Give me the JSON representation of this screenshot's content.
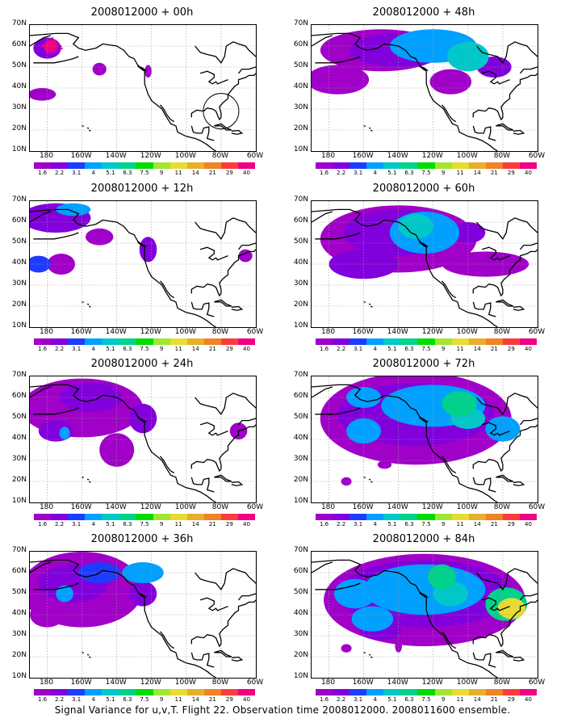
{
  "panels": [
    {
      "title": "2008012000 + 00h",
      "lead": "00h"
    },
    {
      "title": "2008012000 + 48h",
      "lead": "48h"
    },
    {
      "title": "2008012000 + 12h",
      "lead": "12h"
    },
    {
      "title": "2008012000 + 60h",
      "lead": "60h"
    },
    {
      "title": "2008012000 + 24h",
      "lead": "24h"
    },
    {
      "title": "2008012000 + 72h",
      "lead": "72h"
    },
    {
      "title": "2008012000 + 36h",
      "lead": "36h"
    },
    {
      "title": "2008012000 + 84h",
      "lead": "84h"
    }
  ],
  "axes": {
    "lat_labels": [
      "70N",
      "60N",
      "50N",
      "40N",
      "30N",
      "20N",
      "10N"
    ],
    "lon_labels": [
      "180",
      "160W",
      "140W",
      "120W",
      "100W",
      "80W",
      "60W"
    ]
  },
  "colorbar": {
    "labels": [
      "1.6",
      "2.2",
      "3.1",
      "4",
      "5.1",
      "6.3",
      "7.5",
      "9",
      "11",
      "14",
      "21",
      "29",
      "40"
    ],
    "colors": [
      "#a000c8",
      "#8200dc",
      "#1e3cff",
      "#00a0ff",
      "#00c8c8",
      "#00d28c",
      "#00dc00",
      "#a0e632",
      "#e6dc32",
      "#e6af2d",
      "#f08228",
      "#fa3c3c",
      "#f00082"
    ]
  },
  "caption": "Signal Variance for u,v,T. Flight 22. Observation time 2008012000. 2008011600 ensemble."
}
